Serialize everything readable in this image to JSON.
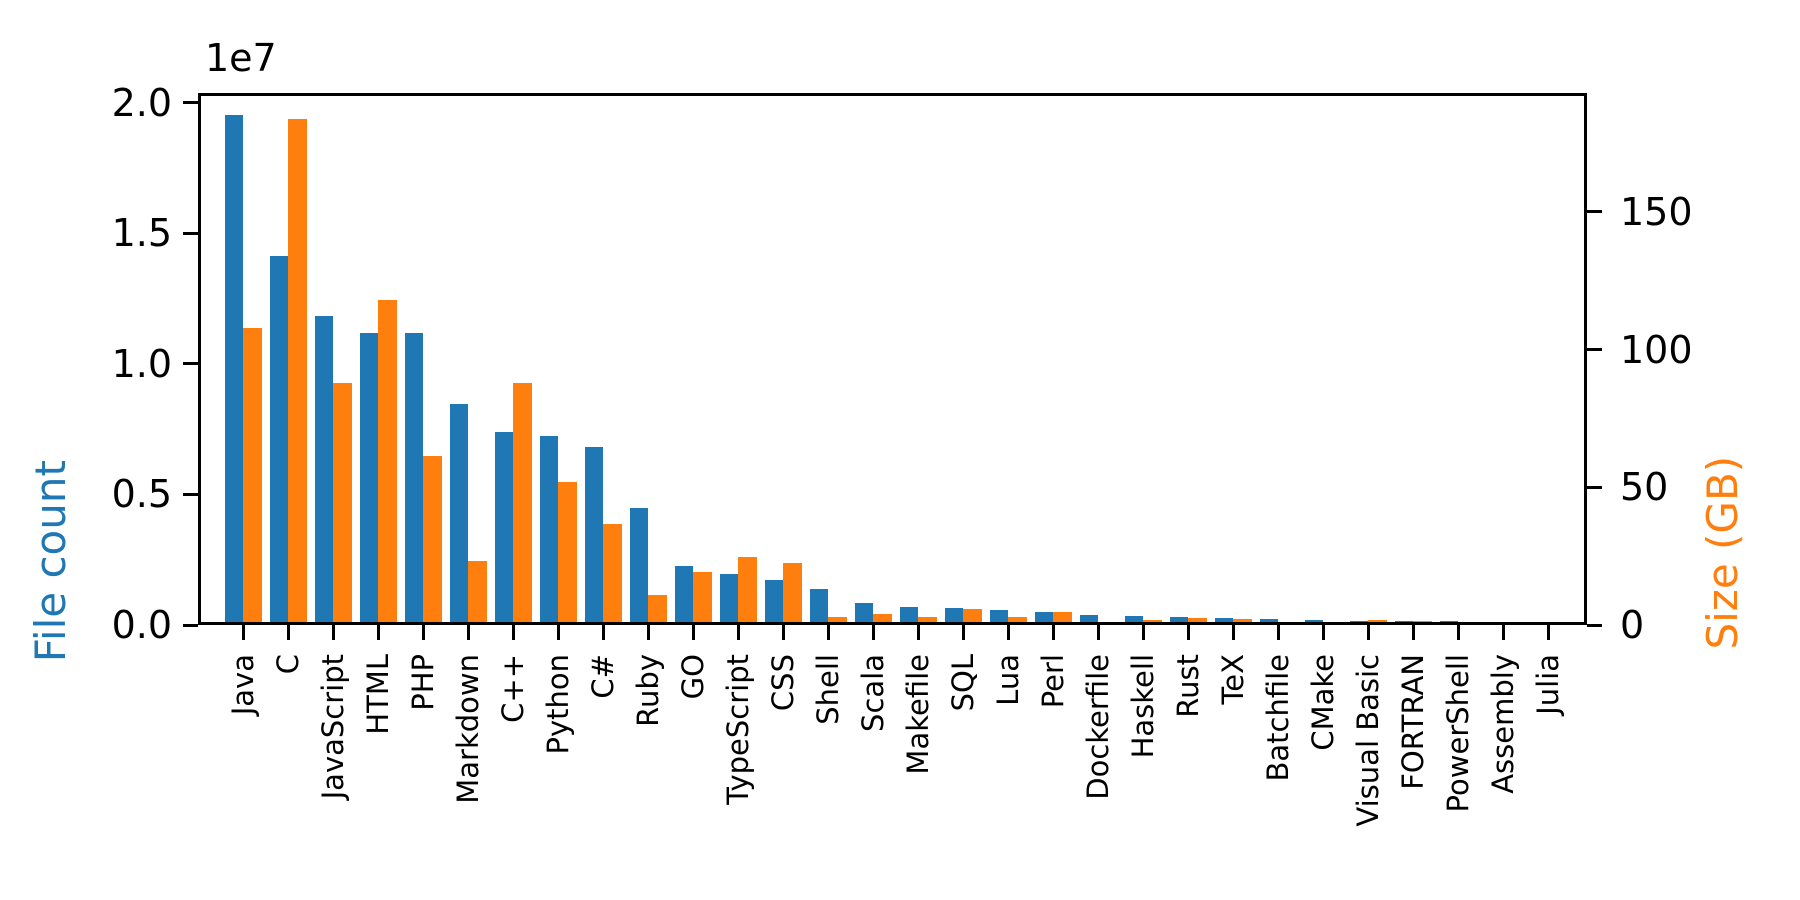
{
  "chart_data": {
    "type": "bar",
    "title": "",
    "grid": false,
    "legend": "none",
    "categories": [
      "Java",
      "C",
      "JavaScript",
      "HTML",
      "PHP",
      "Markdown",
      "C++",
      "Python",
      "C#",
      "Ruby",
      "GO",
      "TypeScript",
      "CSS",
      "Shell",
      "Scala",
      "Makefile",
      "SQL",
      "Lua",
      "Perl",
      "Dockerfile",
      "Haskell",
      "Rust",
      "TeX",
      "Batchfile",
      "CMake",
      "Visual Basic",
      "FORTRAN",
      "PowerShell",
      "Assembly",
      "Julia"
    ],
    "series": [
      {
        "name": "File count",
        "axis": "left",
        "color": "#1f77b4",
        "values": [
          19548190,
          14143113,
          11839883,
          11178557,
          11177610,
          8464626,
          7380520,
          7226626,
          6811652,
          4473331,
          2265436,
          1940406,
          1734406,
          1385648,
          835755,
          679430,
          656671,
          578554,
          497949,
          366505,
          340623,
          322431,
          251015,
          236945,
          175282,
          155652,
          142038,
          136846,
          82905,
          58317
        ]
      },
      {
        "name": "Size (GB)",
        "axis": "right",
        "color": "#ff7f0e",
        "values": [
          107.7,
          183.83,
          87.82,
          118.12,
          61.41,
          23.09,
          87.73,
          52.03,
          36.83,
          10.95,
          19.28,
          24.59,
          22.67,
          3.01,
          3.87,
          2.92,
          5.67,
          2.81,
          4.7,
          0.71,
          1.85,
          2.68,
          2.15,
          0.7,
          0.54,
          1.91,
          1.62,
          0.69,
          0.78,
          0.29
        ]
      }
    ],
    "left_axis": {
      "label": "File count",
      "color": "#1f77b4",
      "offset_label": "1e7",
      "tick_labels": [
        "0.0",
        "0.5",
        "1.0",
        "1.5",
        "2.0"
      ],
      "tick_values": [
        0,
        5000000,
        10000000,
        15000000,
        20000000
      ],
      "ylim": [
        0,
        20380000
      ]
    },
    "right_axis": {
      "label": "Size (GB)",
      "color": "#ff7f0e",
      "tick_labels": [
        "0",
        "50",
        "100",
        "150"
      ],
      "tick_values": [
        0,
        50,
        100,
        150
      ],
      "ylim": [
        0,
        193.2
      ]
    }
  }
}
